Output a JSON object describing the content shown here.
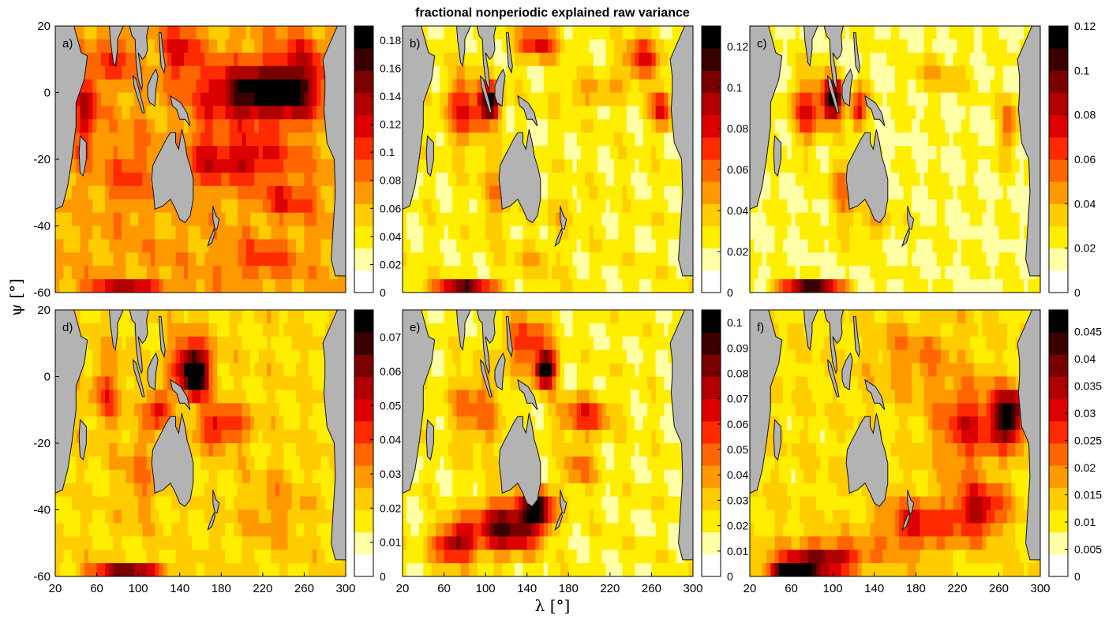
{
  "figure": {
    "title": "fractional nonperiodic explained raw variance",
    "xlabel": "λ [°]",
    "ylabel": "ψ [°]"
  },
  "colors": {
    "land": "#b3b3b3",
    "coast": "#111111",
    "scale": [
      "#ffffff",
      "#ffffa6",
      "#ffee00",
      "#ffcc00",
      "#ff9900",
      "#ff6600",
      "#ff2a00",
      "#dd0000",
      "#b00000",
      "#7a0000",
      "#3a0000",
      "#000000"
    ]
  },
  "chart_data": [
    {
      "type": "heatmap",
      "panel_label": "a)",
      "xlim": [
        20,
        300
      ],
      "ylim": [
        -60,
        20
      ],
      "xticks": [
        20,
        60,
        100,
        140,
        180,
        220,
        260,
        300
      ],
      "yticks": [
        20,
        0,
        -20,
        -40,
        -60
      ],
      "colorbar": {
        "min": 0,
        "max": 0.19,
        "ticks": [
          "0",
          "0.02",
          "0.04",
          "0.06",
          "0.08",
          "0.1",
          "0.12",
          "0.14",
          "0.16",
          "0.18"
        ],
        "tick_values": [
          0,
          0.02,
          0.04,
          0.06,
          0.08,
          0.1,
          0.12,
          0.14,
          0.16,
          0.18
        ]
      },
      "features": [
        {
          "lon": 215,
          "lat": 0,
          "sx": 48,
          "sy": 8,
          "v": 0.19
        },
        {
          "lon": 255,
          "lat": 5,
          "sx": 25,
          "sy": 12,
          "v": 0.12
        },
        {
          "lon": 200,
          "lat": -20,
          "sx": 45,
          "sy": 7,
          "v": 0.13
        },
        {
          "lon": 245,
          "lat": -32,
          "sx": 28,
          "sy": 5,
          "v": 0.11
        },
        {
          "lon": 50,
          "lat": -5,
          "sx": 10,
          "sy": 15,
          "v": 0.13
        },
        {
          "lon": 80,
          "lat": 10,
          "sx": 15,
          "sy": 8,
          "v": 0.11
        },
        {
          "lon": 90,
          "lat": -25,
          "sx": 18,
          "sy": 12,
          "v": 0.1
        },
        {
          "lon": 140,
          "lat": 12,
          "sx": 18,
          "sy": 8,
          "v": 0.12
        },
        {
          "lon": 160,
          "lat": -20,
          "sx": 12,
          "sy": 15,
          "v": 0.09
        },
        {
          "lon": 120,
          "lat": -50,
          "sx": 40,
          "sy": 6,
          "v": 0.07
        },
        {
          "lon": 220,
          "lat": -50,
          "sx": 35,
          "sy": 6,
          "v": 0.1
        },
        {
          "lon": 90,
          "lat": -58,
          "sx": 35,
          "sy": 2,
          "v": 0.13
        }
      ],
      "base": 0.065
    },
    {
      "type": "heatmap",
      "panel_label": "b)",
      "xlim": [
        20,
        300
      ],
      "ylim": [
        -60,
        20
      ],
      "xticks": [
        20,
        60,
        100,
        140,
        180,
        220,
        260,
        300
      ],
      "yticks": [
        20,
        0,
        -20,
        -40,
        -60
      ],
      "colorbar": {
        "min": 0,
        "max": 0.13,
        "ticks": [
          "0",
          "0.02",
          "0.04",
          "0.06",
          "0.08",
          "0.1",
          "0.12"
        ],
        "tick_values": [
          0,
          0.02,
          0.04,
          0.06,
          0.08,
          0.1,
          0.12
        ]
      },
      "features": [
        {
          "lon": 105,
          "lat": -3,
          "sx": 10,
          "sy": 5,
          "v": 0.13
        },
        {
          "lon": 80,
          "lat": -5,
          "sx": 18,
          "sy": 10,
          "v": 0.08
        },
        {
          "lon": 150,
          "lat": 15,
          "sx": 20,
          "sy": 5,
          "v": 0.08
        },
        {
          "lon": 250,
          "lat": 10,
          "sx": 18,
          "sy": 6,
          "v": 0.08
        },
        {
          "lon": 270,
          "lat": -5,
          "sx": 10,
          "sy": 6,
          "v": 0.08
        },
        {
          "lon": 200,
          "lat": 0,
          "sx": 30,
          "sy": 4,
          "v": 0.05
        },
        {
          "lon": 110,
          "lat": -30,
          "sx": 15,
          "sy": 12,
          "v": 0.05
        },
        {
          "lon": 170,
          "lat": -35,
          "sx": 20,
          "sy": 5,
          "v": 0.04
        },
        {
          "lon": 150,
          "lat": -50,
          "sx": 25,
          "sy": 5,
          "v": 0.04
        },
        {
          "lon": 80,
          "lat": -58,
          "sx": 30,
          "sy": 2,
          "v": 0.1
        }
      ],
      "base": 0.025
    },
    {
      "type": "heatmap",
      "panel_label": "c)",
      "xlim": [
        20,
        300
      ],
      "ylim": [
        -60,
        20
      ],
      "xticks": [
        20,
        60,
        100,
        140,
        180,
        220,
        260,
        300
      ],
      "yticks": [
        20,
        0,
        -20,
        -40,
        -60
      ],
      "colorbar": {
        "min": 0,
        "max": 0.12,
        "ticks": [
          "0",
          "0.02",
          "0.04",
          "0.06",
          "0.08",
          "0.1",
          "0.12"
        ],
        "tick_values": [
          0,
          0.02,
          0.04,
          0.06,
          0.08,
          0.1,
          0.12
        ]
      },
      "features": [
        {
          "lon": 100,
          "lat": -2,
          "sx": 10,
          "sy": 6,
          "v": 0.12
        },
        {
          "lon": 75,
          "lat": -5,
          "sx": 15,
          "sy": 10,
          "v": 0.07
        },
        {
          "lon": 125,
          "lat": -5,
          "sx": 8,
          "sy": 6,
          "v": 0.08
        },
        {
          "lon": 270,
          "lat": -10,
          "sx": 8,
          "sy": 8,
          "v": 0.06
        },
        {
          "lon": 200,
          "lat": 5,
          "sx": 25,
          "sy": 5,
          "v": 0.04
        },
        {
          "lon": 110,
          "lat": -30,
          "sx": 15,
          "sy": 10,
          "v": 0.05
        },
        {
          "lon": 140,
          "lat": -38,
          "sx": 20,
          "sy": 6,
          "v": 0.04
        },
        {
          "lon": 80,
          "lat": -58,
          "sx": 30,
          "sy": 2,
          "v": 0.1
        }
      ],
      "base": 0.02
    },
    {
      "type": "heatmap",
      "panel_label": "d)",
      "xlim": [
        20,
        300
      ],
      "ylim": [
        -60,
        20
      ],
      "xticks": [
        20,
        60,
        100,
        140,
        180,
        220,
        260,
        300
      ],
      "yticks": [
        20,
        0,
        -20,
        -40,
        -60
      ],
      "colorbar": {
        "min": 0,
        "max": 0.078,
        "ticks": [
          "0",
          "0.01",
          "0.02",
          "0.03",
          "0.04",
          "0.05",
          "0.06",
          "0.07"
        ],
        "tick_values": [
          0,
          0.01,
          0.02,
          0.03,
          0.04,
          0.05,
          0.06,
          0.07
        ]
      },
      "features": [
        {
          "lon": 155,
          "lat": 0,
          "sx": 12,
          "sy": 6,
          "v": 0.078
        },
        {
          "lon": 150,
          "lat": 5,
          "sx": 20,
          "sy": 8,
          "v": 0.05
        },
        {
          "lon": 180,
          "lat": -15,
          "sx": 25,
          "sy": 6,
          "v": 0.05
        },
        {
          "lon": 120,
          "lat": -10,
          "sx": 12,
          "sy": 6,
          "v": 0.05
        },
        {
          "lon": 70,
          "lat": -5,
          "sx": 15,
          "sy": 10,
          "v": 0.04
        },
        {
          "lon": 100,
          "lat": -30,
          "sx": 15,
          "sy": 12,
          "v": 0.035
        },
        {
          "lon": 230,
          "lat": -40,
          "sx": 30,
          "sy": 10,
          "v": 0.03
        },
        {
          "lon": 90,
          "lat": -58,
          "sx": 35,
          "sy": 2,
          "v": 0.06
        }
      ],
      "base": 0.02
    },
    {
      "type": "heatmap",
      "panel_label": "e)",
      "xlim": [
        20,
        300
      ],
      "ylim": [
        -60,
        20
      ],
      "xticks": [
        20,
        60,
        100,
        140,
        180,
        220,
        260,
        300
      ],
      "yticks": [
        20,
        0,
        -20,
        -40,
        -60
      ],
      "colorbar": {
        "min": 0,
        "max": 0.105,
        "ticks": [
          "0",
          "0.01",
          "0.02",
          "0.03",
          "0.04",
          "0.05",
          "0.06",
          "0.07",
          "0.08",
          "0.09",
          "0.1"
        ],
        "tick_values": [
          0,
          0.01,
          0.02,
          0.03,
          0.04,
          0.05,
          0.06,
          0.07,
          0.08,
          0.09,
          0.1
        ]
      },
      "features": [
        {
          "lon": 158,
          "lat": 2,
          "sx": 10,
          "sy": 5,
          "v": 0.105
        },
        {
          "lon": 140,
          "lat": 10,
          "sx": 22,
          "sy": 8,
          "v": 0.06
        },
        {
          "lon": 195,
          "lat": -12,
          "sx": 25,
          "sy": 6,
          "v": 0.06
        },
        {
          "lon": 90,
          "lat": -10,
          "sx": 25,
          "sy": 12,
          "v": 0.05
        },
        {
          "lon": 120,
          "lat": -45,
          "sx": 30,
          "sy": 8,
          "v": 0.09
        },
        {
          "lon": 150,
          "lat": -40,
          "sx": 15,
          "sy": 6,
          "v": 0.09
        },
        {
          "lon": 190,
          "lat": -28,
          "sx": 15,
          "sy": 6,
          "v": 0.05
        },
        {
          "lon": 70,
          "lat": -50,
          "sx": 20,
          "sy": 6,
          "v": 0.08
        }
      ],
      "base": 0.02
    },
    {
      "type": "heatmap",
      "panel_label": "f)",
      "xlim": [
        20,
        300
      ],
      "ylim": [
        -60,
        20
      ],
      "xticks": [
        20,
        60,
        100,
        140,
        180,
        220,
        260,
        300
      ],
      "yticks": [
        20,
        0,
        -20,
        -40,
        -60
      ],
      "colorbar": {
        "min": 0,
        "max": 0.049,
        "ticks": [
          "0",
          "0.005",
          "0.01",
          "0.015",
          "0.02",
          "0.025",
          "0.03",
          "0.035",
          "0.04",
          "0.045"
        ],
        "tick_values": [
          0,
          0.005,
          0.01,
          0.015,
          0.02,
          0.025,
          0.03,
          0.035,
          0.04,
          0.045
        ]
      },
      "features": [
        {
          "lon": 270,
          "lat": -12,
          "sx": 15,
          "sy": 8,
          "v": 0.049
        },
        {
          "lon": 230,
          "lat": -15,
          "sx": 30,
          "sy": 12,
          "v": 0.03
        },
        {
          "lon": 240,
          "lat": -40,
          "sx": 25,
          "sy": 8,
          "v": 0.035
        },
        {
          "lon": 180,
          "lat": -45,
          "sx": 35,
          "sy": 8,
          "v": 0.03
        },
        {
          "lon": 90,
          "lat": -55,
          "sx": 40,
          "sy": 5,
          "v": 0.04
        },
        {
          "lon": 60,
          "lat": -58,
          "sx": 20,
          "sy": 2,
          "v": 0.045
        },
        {
          "lon": 180,
          "lat": 5,
          "sx": 40,
          "sy": 12,
          "v": 0.02
        }
      ],
      "base": 0.012
    }
  ]
}
